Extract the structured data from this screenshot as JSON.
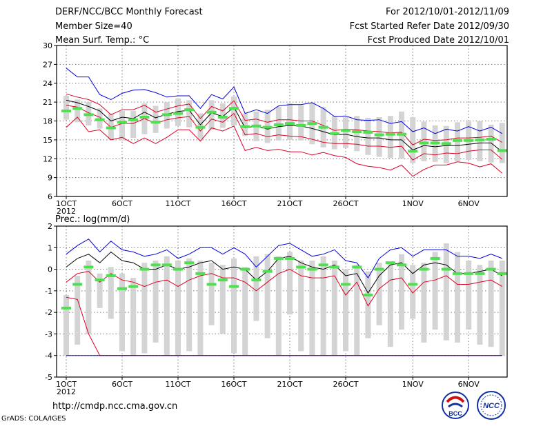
{
  "header": {
    "title": "DERF/NCC/BCC Monthly Forecast",
    "member_size": "Member Size=40",
    "variable": "Mean Surf. Temp.: °C",
    "period": "For 2012/10/01-2012/11/09",
    "fcst_started": "Fcst Started Refer Date 2012/09/30",
    "fcst_produced": "Fcst Produced Date 2012/10/01"
  },
  "footer": {
    "url": "http://cmdp.ncc.cma.gov.cn",
    "credit": "GrADS: COLA/IGES",
    "logo_bcc": "BCC",
    "logo_ncc": "NCC"
  },
  "colors": {
    "bar": "#d4d4d4",
    "member": "#4ee04e",
    "max": "#0000dd",
    "min": "#dd0022",
    "mean": "#000000",
    "grid": "#777777"
  },
  "chart_data": [
    {
      "type": "line",
      "title": "Mean Surf. Temp.: °C",
      "ylim": [
        6,
        30
      ],
      "yticks": [
        "30",
        "27",
        "24",
        "21",
        "18",
        "15",
        "12",
        "9",
        "6"
      ],
      "xticks": [
        "1OCT",
        "6OCT",
        "11OCT",
        "16OCT",
        "21OCT",
        "26OCT",
        "1NOV",
        "6NOV"
      ],
      "xticks_day": [
        1,
        6,
        11,
        16,
        21,
        26,
        32,
        37
      ],
      "year_label": "2012",
      "x_days": [
        1,
        2,
        3,
        4,
        5,
        6,
        7,
        8,
        9,
        10,
        11,
        12,
        13,
        14,
        15,
        16,
        17,
        18,
        19,
        20,
        21,
        22,
        23,
        24,
        25,
        26,
        27,
        28,
        29,
        30,
        31,
        32,
        33,
        34,
        35,
        36,
        37,
        38,
        39,
        40
      ],
      "bar_low": [
        18.2,
        17.8,
        17.3,
        16.8,
        15.1,
        14.9,
        15.3,
        15.9,
        16.1,
        16.8,
        17.2,
        17.0,
        15.2,
        16.6,
        16.9,
        17.3,
        15.6,
        14.8,
        14.5,
        14.9,
        15.0,
        14.9,
        14.3,
        13.8,
        13.5,
        13.7,
        13.2,
        12.6,
        12.3,
        12.1,
        12.0,
        11.3,
        11.6,
        11.5,
        11.3,
        11.6,
        11.8,
        11.6,
        11.4,
        11.3
      ],
      "bar_high": [
        22.0,
        21.4,
        21.0,
        20.0,
        19.2,
        19.6,
        19.6,
        20.8,
        20.4,
        21.0,
        21.6,
        21.3,
        19.2,
        21.3,
        20.8,
        21.9,
        19.2,
        19.5,
        19.8,
        20.3,
        20.8,
        20.5,
        20.9,
        20.2,
        18.8,
        18.6,
        18.8,
        18.5,
        18.6,
        18.8,
        19.5,
        18.6,
        17.9,
        17.3,
        17.2,
        17.8,
        17.9,
        18.0,
        17.4,
        17.7
      ],
      "member": [
        19.6,
        20.0,
        19.0,
        18.2,
        16.9,
        17.8,
        18.2,
        18.6,
        17.8,
        19.0,
        19.2,
        19.8,
        17.0,
        19.4,
        18.6,
        20.0,
        17.1,
        17.2,
        17.0,
        17.4,
        17.6,
        17.3,
        17.6,
        17.0,
        16.0,
        16.5,
        16.3,
        16.2,
        15.8,
        15.9,
        15.9,
        13.2,
        14.5,
        14.5,
        14.4,
        14.9,
        14.9,
        15.0,
        15.1,
        13.3
      ],
      "series": [
        {
          "name": "max",
          "values": [
            26.4,
            25.0,
            25.0,
            22.2,
            21.4,
            22.4,
            22.9,
            23.0,
            22.5,
            21.8,
            22.0,
            22.0,
            20.0,
            22.2,
            21.5,
            23.4,
            19.2,
            19.8,
            19.2,
            20.4,
            20.6,
            20.6,
            20.9,
            20.0,
            18.7,
            18.8,
            18.2,
            18.1,
            18.2,
            17.6,
            17.9,
            16.3,
            16.9,
            16.0,
            16.7,
            16.4,
            17.1,
            16.4,
            17.0,
            16.0
          ]
        },
        {
          "name": "upper",
          "values": [
            22.3,
            21.8,
            21.4,
            20.6,
            19.0,
            19.8,
            19.8,
            20.5,
            19.4,
            19.9,
            20.4,
            20.7,
            18.4,
            20.3,
            19.6,
            21.2,
            18.1,
            18.3,
            17.8,
            18.2,
            18.2,
            18.0,
            18.0,
            17.3,
            16.5,
            16.7,
            16.6,
            16.4,
            16.3,
            16.1,
            16.2,
            14.2,
            15.1,
            14.9,
            15.0,
            15.3,
            15.3,
            15.4,
            15.6,
            14.6
          ]
        },
        {
          "name": "mean",
          "values": [
            21.3,
            20.9,
            20.3,
            19.6,
            18.0,
            18.6,
            18.4,
            19.4,
            18.5,
            19.1,
            19.5,
            19.7,
            17.4,
            19.3,
            18.7,
            20.2,
            16.9,
            17.2,
            16.7,
            17.1,
            17.3,
            17.2,
            16.8,
            16.3,
            15.8,
            15.9,
            15.5,
            15.3,
            15.3,
            15.0,
            15.0,
            13.4,
            14.1,
            13.9,
            14.1,
            14.1,
            14.3,
            14.5,
            14.5,
            13.1
          ]
        },
        {
          "name": "lower",
          "values": [
            20.5,
            20.2,
            19.3,
            18.6,
            17.0,
            17.6,
            17.6,
            18.4,
            17.6,
            18.2,
            18.5,
            18.7,
            16.4,
            18.3,
            17.8,
            19.2,
            15.8,
            16.0,
            15.5,
            15.8,
            15.6,
            15.5,
            15.1,
            14.6,
            14.4,
            14.4,
            14.3,
            14.0,
            14.0,
            13.8,
            14.0,
            11.8,
            12.8,
            12.6,
            12.9,
            12.8,
            13.2,
            13.4,
            13.4,
            11.9
          ]
        },
        {
          "name": "min",
          "values": [
            17.0,
            18.6,
            16.3,
            16.6,
            15.0,
            15.4,
            14.4,
            15.3,
            14.4,
            15.4,
            16.6,
            16.6,
            14.8,
            16.9,
            16.4,
            17.2,
            13.3,
            13.8,
            13.3,
            13.5,
            13.1,
            13.1,
            12.6,
            13.0,
            12.5,
            12.2,
            11.2,
            10.8,
            10.6,
            10.2,
            11.0,
            9.2,
            10.3,
            11.0,
            11.0,
            11.5,
            11.3,
            10.7,
            11.2,
            9.7
          ]
        }
      ]
    },
    {
      "type": "line",
      "title": "Prec.: log(mm/d)",
      "ylim": [
        -5,
        2
      ],
      "yticks": [
        "2",
        "1",
        "0",
        "-1",
        "-2",
        "-3",
        "-4",
        "-5"
      ],
      "xticks": [
        "1OCT",
        "6OCT",
        "11OCT",
        "16OCT",
        "21OCT",
        "26OCT",
        "1NOV",
        "6NOV"
      ],
      "xticks_day": [
        1,
        6,
        11,
        16,
        21,
        26,
        32,
        37
      ],
      "year_label": "2012",
      "x_days": [
        1,
        2,
        3,
        4,
        5,
        6,
        7,
        8,
        9,
        10,
        11,
        12,
        13,
        14,
        15,
        16,
        17,
        18,
        19,
        20,
        21,
        22,
        23,
        24,
        25,
        26,
        27,
        28,
        29,
        30,
        31,
        32,
        33,
        34,
        35,
        36,
        37,
        38,
        39,
        40
      ],
      "bar_low": [
        -4.0,
        -3.5,
        -3.0,
        -1.8,
        -2.3,
        -3.8,
        -4.0,
        -3.9,
        -3.4,
        -4.0,
        -4.0,
        -3.8,
        -4.0,
        -2.6,
        -3.0,
        -3.9,
        -4.0,
        -2.4,
        -3.2,
        -4.0,
        -2.1,
        -3.8,
        -4.0,
        -4.0,
        -4.0,
        -3.8,
        -4.0,
        -3.2,
        -2.6,
        -3.6,
        -2.8,
        -2.3,
        -3.4,
        -2.8,
        -3.3,
        -3.4,
        -2.8,
        -3.5,
        -3.6,
        -4.0
      ],
      "bar_high": [
        -1.2,
        -0.3,
        0.4,
        -0.2,
        0.1,
        -0.2,
        -0.4,
        0.3,
        0.4,
        0.6,
        0.4,
        0.5,
        0.4,
        0.3,
        0.2,
        0.5,
        0.1,
        0.6,
        0.7,
        0.6,
        0.8,
        0.4,
        0.4,
        0.6,
        0.4,
        0.0,
        0.2,
        -0.1,
        0.3,
        0.3,
        0.7,
        0.2,
        0.3,
        0.8,
        1.2,
        0.8,
        0.4,
        0.2,
        0.4,
        0.4
      ],
      "member": [
        -1.8,
        -0.7,
        0.1,
        -0.5,
        -0.3,
        -0.9,
        -0.8,
        0.0,
        0.2,
        0.2,
        0.0,
        0.3,
        -0.2,
        -0.7,
        -0.5,
        -0.8,
        0.0,
        -0.5,
        -0.1,
        0.5,
        0.5,
        0.1,
        0.0,
        0.2,
        0.1,
        -0.7,
        0.1,
        -1.2,
        0.0,
        0.3,
        0.2,
        -0.7,
        0.0,
        0.5,
        0.0,
        -0.2,
        -0.2,
        -0.2,
        0.0,
        -0.2
      ],
      "series": [
        {
          "name": "max",
          "values": [
            0.7,
            1.1,
            1.4,
            0.8,
            1.3,
            0.9,
            0.8,
            0.6,
            0.7,
            0.9,
            0.5,
            0.7,
            1.0,
            1.0,
            0.7,
            1.0,
            0.7,
            0.1,
            0.6,
            1.1,
            1.2,
            0.9,
            0.6,
            0.7,
            0.9,
            0.4,
            0.3,
            -0.4,
            0.5,
            0.9,
            1.0,
            0.6,
            0.9,
            0.9,
            0.9,
            0.6,
            0.6,
            0.5,
            0.7,
            0.5
          ]
        },
        {
          "name": "mean",
          "values": [
            0.1,
            0.5,
            0.7,
            0.3,
            0.8,
            0.4,
            0.3,
            0.0,
            0.0,
            0.2,
            0.0,
            0.1,
            0.3,
            0.4,
            0.0,
            0.1,
            0.0,
            -0.5,
            -0.1,
            0.5,
            0.6,
            0.3,
            0.1,
            0.0,
            0.2,
            -0.3,
            -0.2,
            -1.1,
            -0.3,
            0.2,
            0.3,
            -0.2,
            0.2,
            0.3,
            0.2,
            -0.2,
            -0.2,
            -0.1,
            0.0,
            -0.3
          ]
        },
        {
          "name": "lower",
          "values": [
            -1.3,
            -1.4,
            -3.0,
            -4.0,
            -4.0,
            -4.0,
            -4.0,
            -4.0,
            -4.0,
            -4.0,
            -4.0,
            -4.0,
            -4.0,
            -4.0,
            -4.0,
            -4.0,
            -4.0,
            -4.0,
            -4.0,
            -4.0,
            -4.0,
            -4.0,
            -4.0,
            -4.0,
            -4.0,
            -4.0,
            -4.0,
            -4.0,
            -4.0,
            -4.0,
            -4.0,
            -4.0,
            -4.0,
            -4.0,
            -4.0,
            -4.0,
            -4.0,
            -4.0,
            -4.0,
            -4.0
          ]
        },
        {
          "name": "min",
          "values": [
            -0.6,
            -0.2,
            -0.1,
            -0.6,
            -0.2,
            -0.5,
            -0.6,
            -0.8,
            -0.6,
            -0.5,
            -0.8,
            -0.5,
            -0.3,
            -0.2,
            -0.4,
            -0.4,
            -0.6,
            -1.0,
            -0.6,
            -0.2,
            0.0,
            -0.3,
            -0.4,
            -0.4,
            -0.3,
            -1.2,
            -0.6,
            -1.7,
            -0.9,
            -0.5,
            -0.4,
            -1.1,
            -0.6,
            -0.5,
            -0.3,
            -0.7,
            -0.7,
            -0.6,
            -0.5,
            -0.8
          ]
        },
        {
          "name": "floor",
          "values": [
            -4.0,
            -4.0,
            -4.0,
            -4.0,
            -4.0,
            -4.0,
            -4.0,
            -4.0,
            -4.0,
            -4.0,
            -4.0,
            -4.0,
            -4.0,
            -4.0,
            -4.0,
            -4.0,
            -4.0,
            -4.0,
            -4.0,
            -4.0,
            -4.0,
            -4.0,
            -4.0,
            -4.0,
            -4.0,
            -4.0,
            -4.0,
            -4.0,
            -4.0,
            -4.0,
            -4.0,
            -4.0,
            -4.0,
            -4.0,
            -4.0,
            -4.0,
            -4.0,
            -4.0,
            -4.0,
            -4.0
          ]
        }
      ]
    }
  ]
}
